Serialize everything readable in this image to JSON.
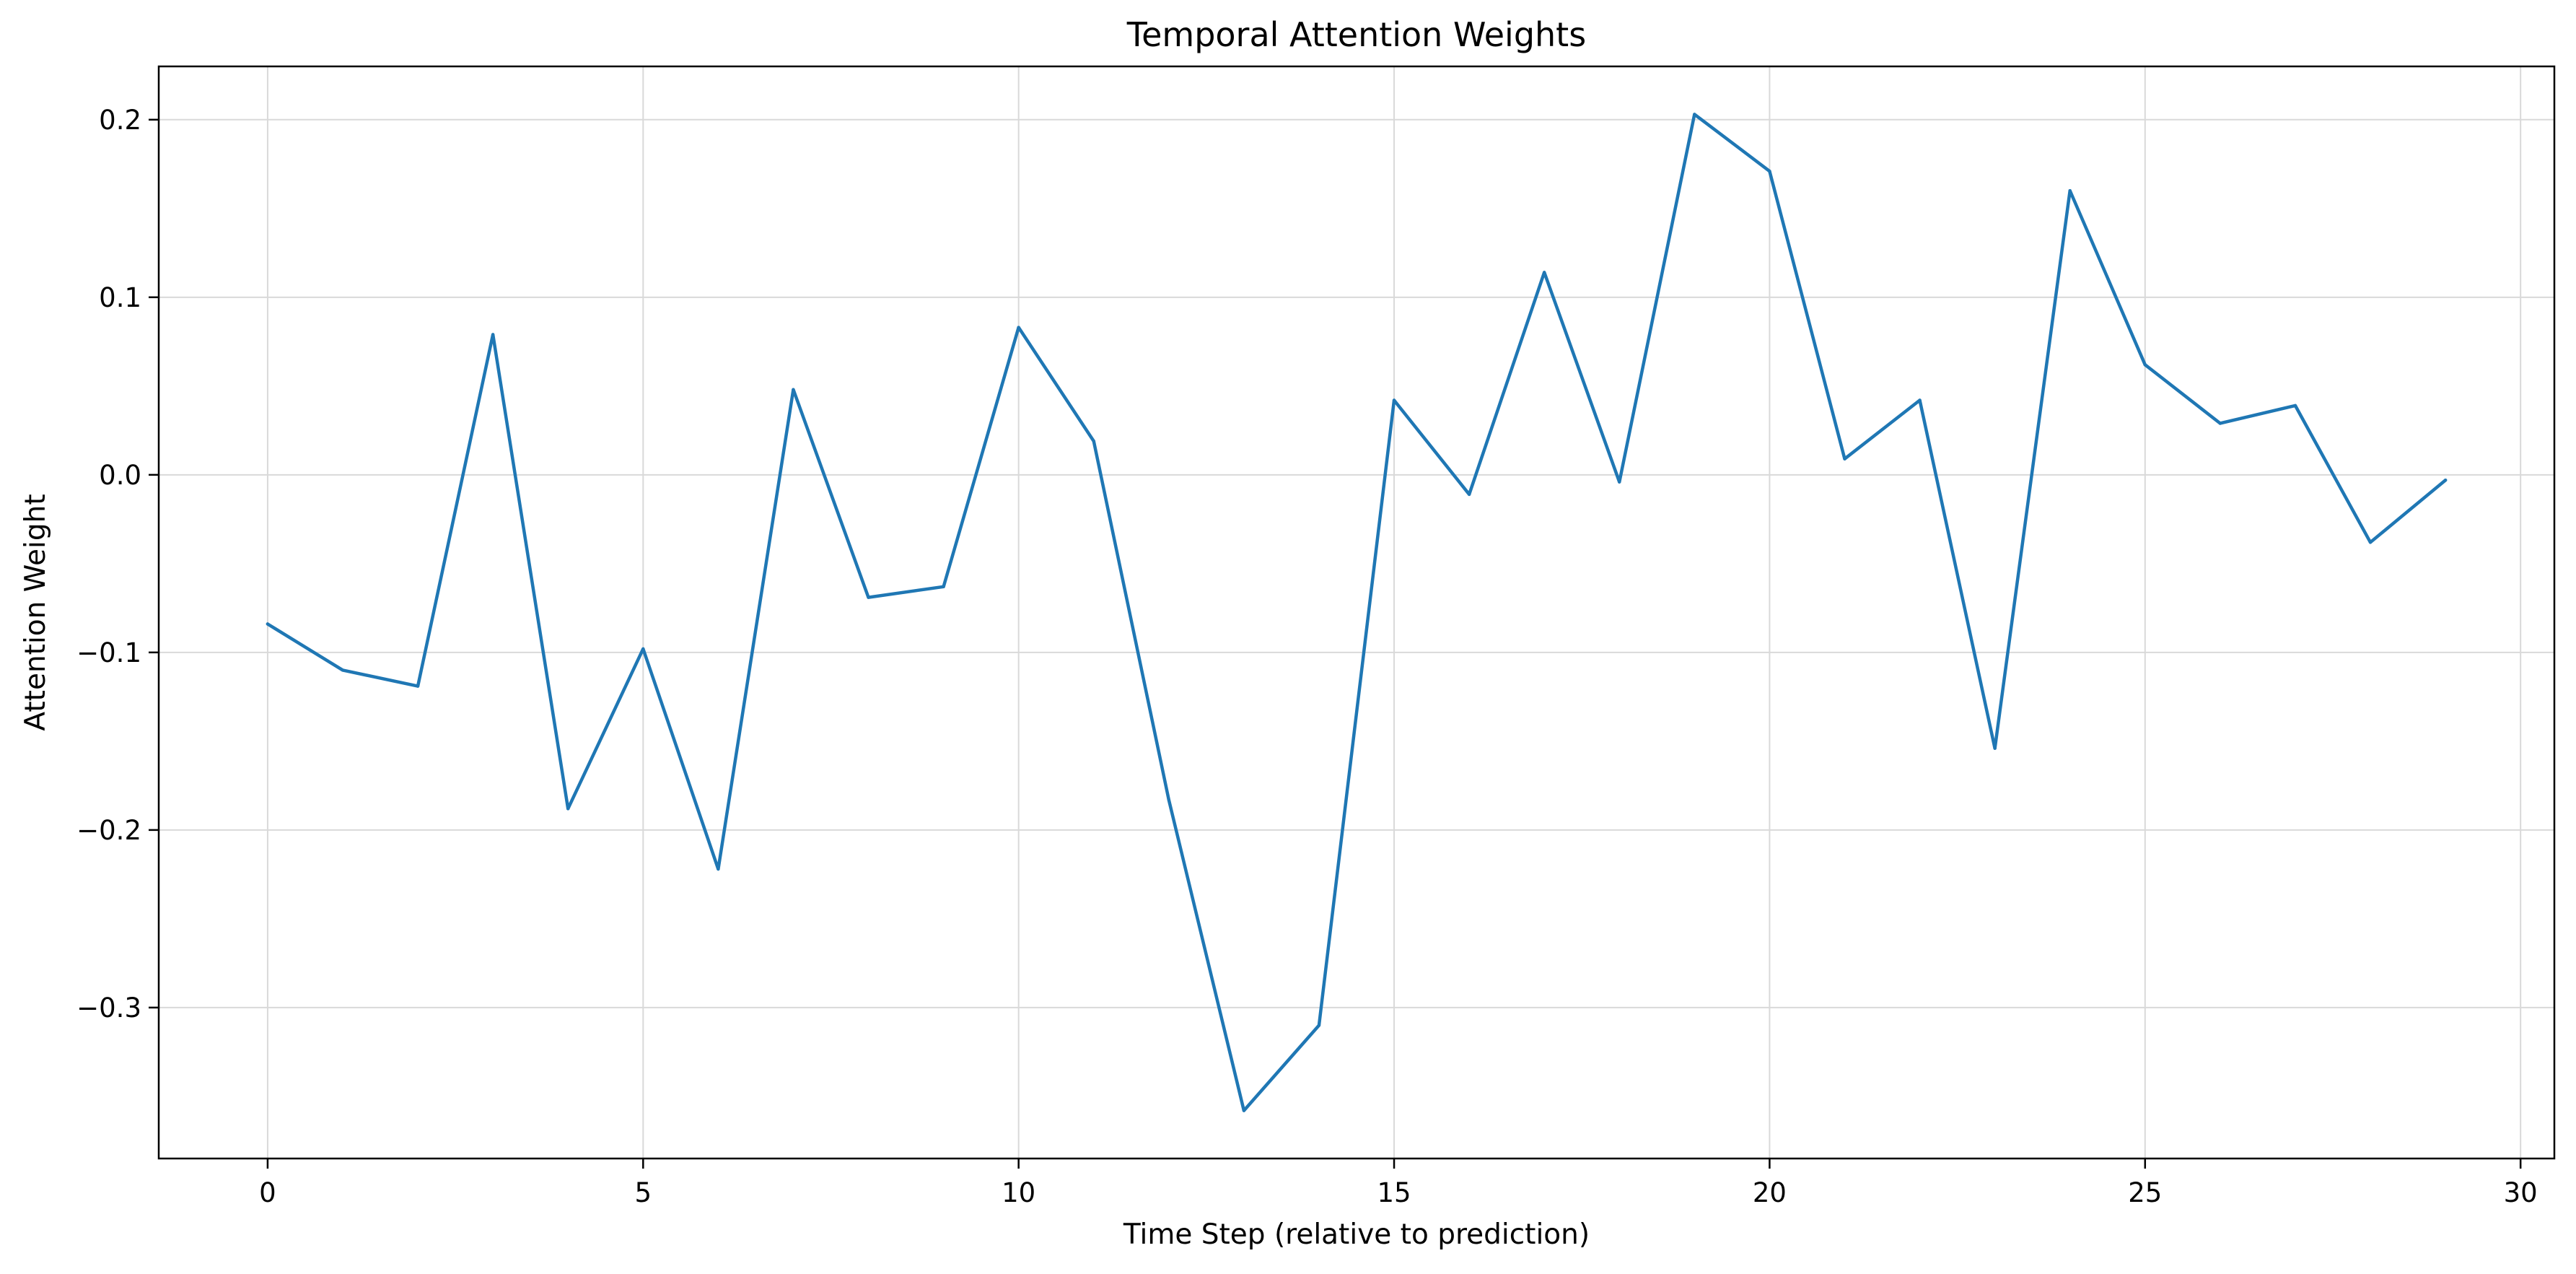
{
  "chart_data": {
    "type": "line",
    "title": "Temporal Attention Weights",
    "xlabel": "Time Step (relative to prediction)",
    "ylabel": "Attention Weight",
    "xlim": [
      -1.45,
      30.45
    ],
    "ylim": [
      -0.385,
      0.23
    ],
    "xticks": [
      0,
      5,
      10,
      15,
      20,
      25,
      30
    ],
    "yticks": [
      0.2,
      0.1,
      0.0,
      -0.1,
      -0.2,
      -0.3
    ],
    "xtick_labels": [
      "0",
      "5",
      "10",
      "15",
      "20",
      "25",
      "30"
    ],
    "ytick_labels": [
      "0.2",
      "0.1",
      "0.0",
      "−0.1",
      "−0.2",
      "−0.3"
    ],
    "grid": true,
    "series": [
      {
        "color": "#1f77b4",
        "x": [
          0,
          1,
          2,
          3,
          4,
          5,
          6,
          7,
          8,
          9,
          10,
          11,
          12,
          13,
          14,
          15,
          16,
          17,
          18,
          19,
          20,
          21,
          22,
          23,
          24,
          25,
          26,
          27,
          28,
          29
        ],
        "y": [
          -0.084,
          -0.11,
          -0.119,
          0.079,
          -0.188,
          -0.098,
          -0.222,
          0.048,
          -0.069,
          -0.063,
          0.083,
          0.019,
          -0.183,
          -0.358,
          -0.31,
          0.042,
          -0.011,
          0.114,
          -0.004,
          0.203,
          0.171,
          0.009,
          0.042,
          -0.154,
          0.16,
          0.062,
          0.029,
          0.039,
          -0.038,
          -0.003
        ]
      }
    ]
  }
}
